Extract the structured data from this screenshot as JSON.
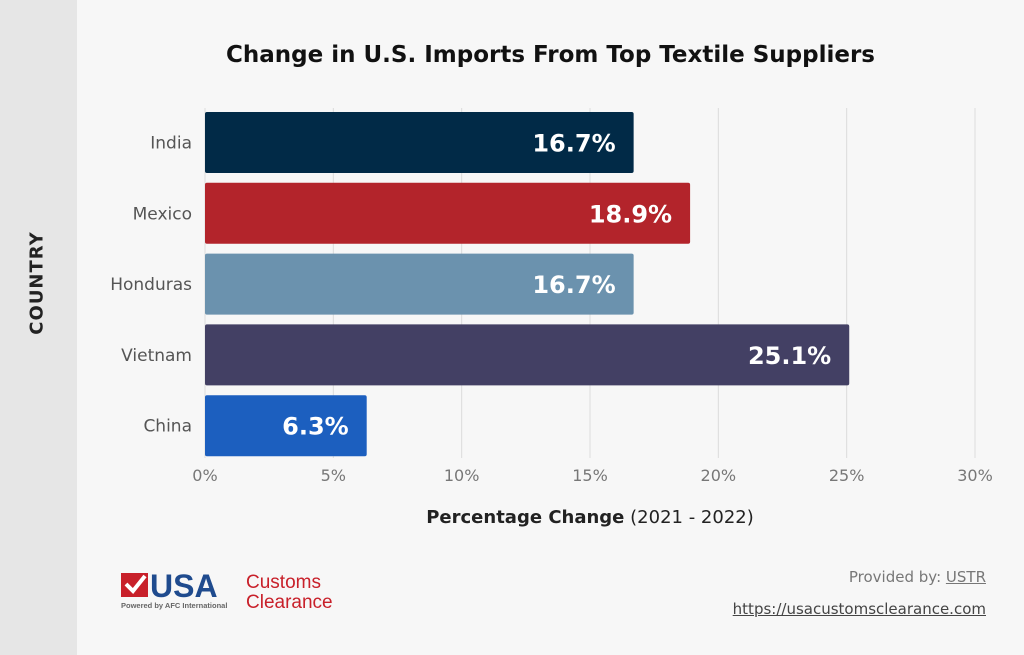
{
  "chart_data": {
    "type": "bar",
    "orientation": "horizontal",
    "title": "Change in U.S. Imports From Top Textile Suppliers",
    "xlabel_bold": "Percentage Change",
    "xlabel_rest": "(2021 - 2022)",
    "ylabel": "COUNTRY",
    "categories": [
      "India",
      "Mexico",
      "Honduras",
      "Vietnam",
      "China"
    ],
    "values": [
      16.7,
      18.9,
      16.7,
      25.1,
      6.3
    ],
    "data_labels": [
      "16.7%",
      "18.9%",
      "16.7%",
      "25.1%",
      "6.3%"
    ],
    "colors": [
      "#012a47",
      "#b3242b",
      "#6b92ae",
      "#434064",
      "#1c5fbf"
    ],
    "xlim": [
      0,
      30
    ],
    "xticks": [
      0,
      5,
      10,
      15,
      20,
      25,
      30
    ],
    "xtick_labels": [
      "0%",
      "5%",
      "10%",
      "15%",
      "20%",
      "25%",
      "30%"
    ],
    "grid": "vertical"
  },
  "footer": {
    "provided_prefix": "Provided by:",
    "provided_source": "USTR",
    "url": "https://usacustomsclearance.com"
  },
  "logo": {
    "text_usa": "USA",
    "text_customs": "Customs",
    "text_clearance": "Clearance",
    "tagline": "Powered by AFC International",
    "colors": {
      "red": "#c8202a",
      "blue": "#1f4b8e"
    }
  }
}
